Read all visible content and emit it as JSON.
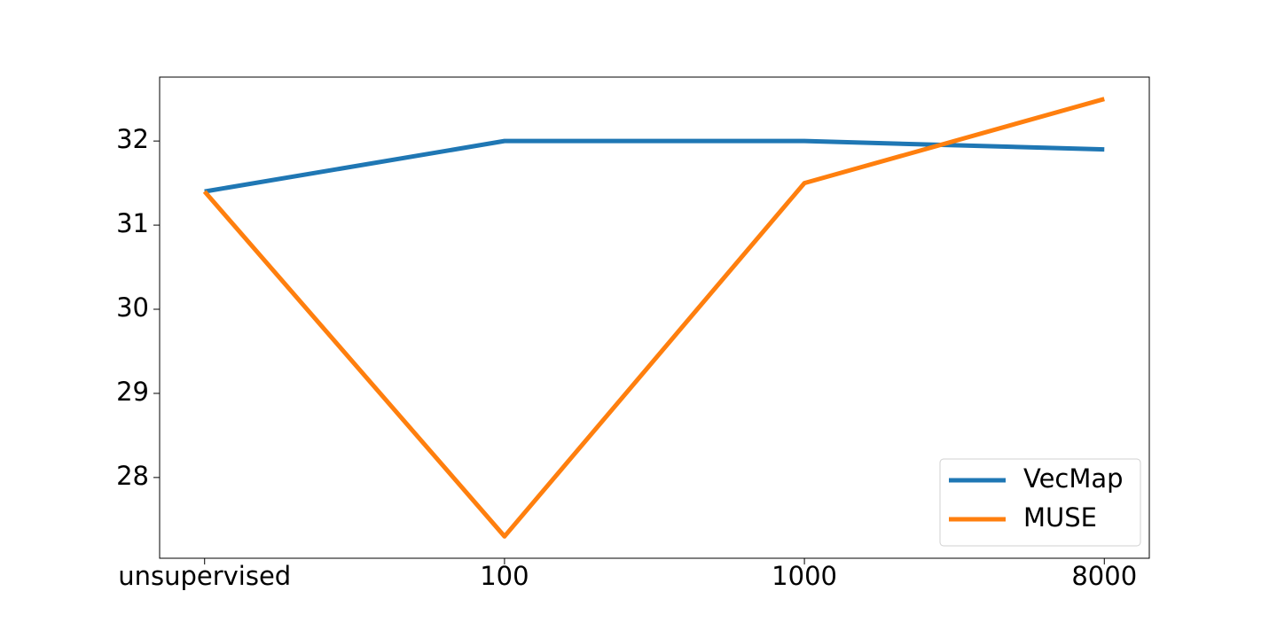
{
  "chart_data": {
    "type": "line",
    "categories": [
      "unsupervised",
      "100",
      "1000",
      "8000"
    ],
    "series": [
      {
        "name": "VecMap",
        "color": "#1f77b4",
        "values": [
          31.4,
          32.0,
          32.0,
          31.9
        ]
      },
      {
        "name": "MUSE",
        "color": "#ff7f0e",
        "values": [
          31.4,
          27.3,
          31.5,
          32.5
        ]
      }
    ],
    "ylim": [
      27.04,
      32.76
    ],
    "yticks": [
      28,
      29,
      30,
      31,
      32
    ],
    "legend": "lower right"
  }
}
